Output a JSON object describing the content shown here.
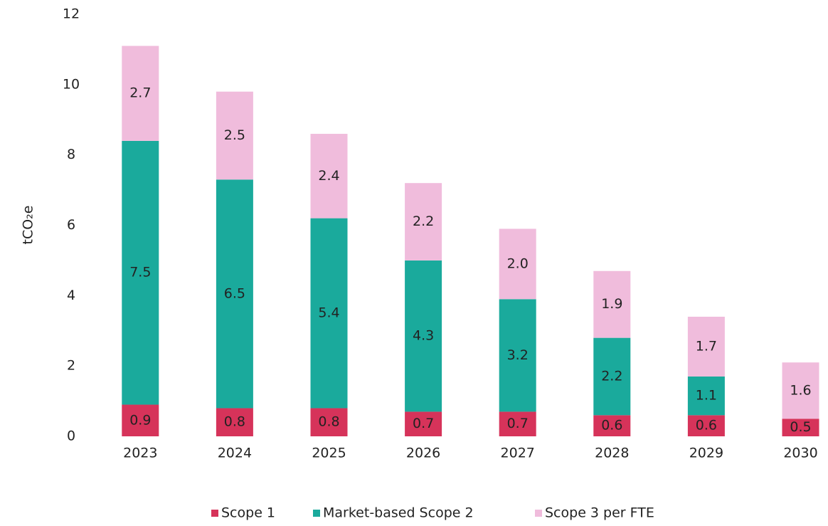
{
  "chart_data": {
    "type": "stacked_bar",
    "y_label": "tCO₂e",
    "categories": [
      "2023",
      "2024",
      "2025",
      "2026",
      "2027",
      "2028",
      "2029",
      "2030"
    ],
    "series": [
      {
        "name": "Scope 1",
        "color": "#d6335a",
        "values": [
          0.9,
          0.8,
          0.8,
          0.7,
          0.7,
          0.6,
          0.6,
          0.5
        ],
        "value_labels": [
          "0.9",
          "0.8",
          "0.8",
          "0.7",
          "0.7",
          "0.6",
          "0.6",
          "0.5"
        ]
      },
      {
        "name": "Market-based Scope 2",
        "color": "#1aaa9c",
        "values": [
          7.5,
          6.5,
          5.4,
          4.3,
          3.2,
          2.2,
          1.1,
          0.0
        ],
        "value_labels": [
          "7.5",
          "6.5",
          "5.4",
          "4.3",
          "3.2",
          "2.2",
          "1.1",
          "0.0"
        ]
      },
      {
        "name": "Scope 3 per FTE",
        "color": "#f0bcdc",
        "values": [
          2.7,
          2.5,
          2.4,
          2.2,
          2.0,
          1.9,
          1.7,
          1.6
        ],
        "value_labels": [
          "2.7",
          "2.5",
          "2.4",
          "2.2",
          "2.0",
          "1.9",
          "1.7",
          "1.6"
        ]
      }
    ],
    "ylim": [
      0,
      12
    ],
    "yticks": [
      0,
      2,
      4,
      6,
      8,
      10,
      12
    ],
    "grid": false,
    "legend": "bottom"
  }
}
